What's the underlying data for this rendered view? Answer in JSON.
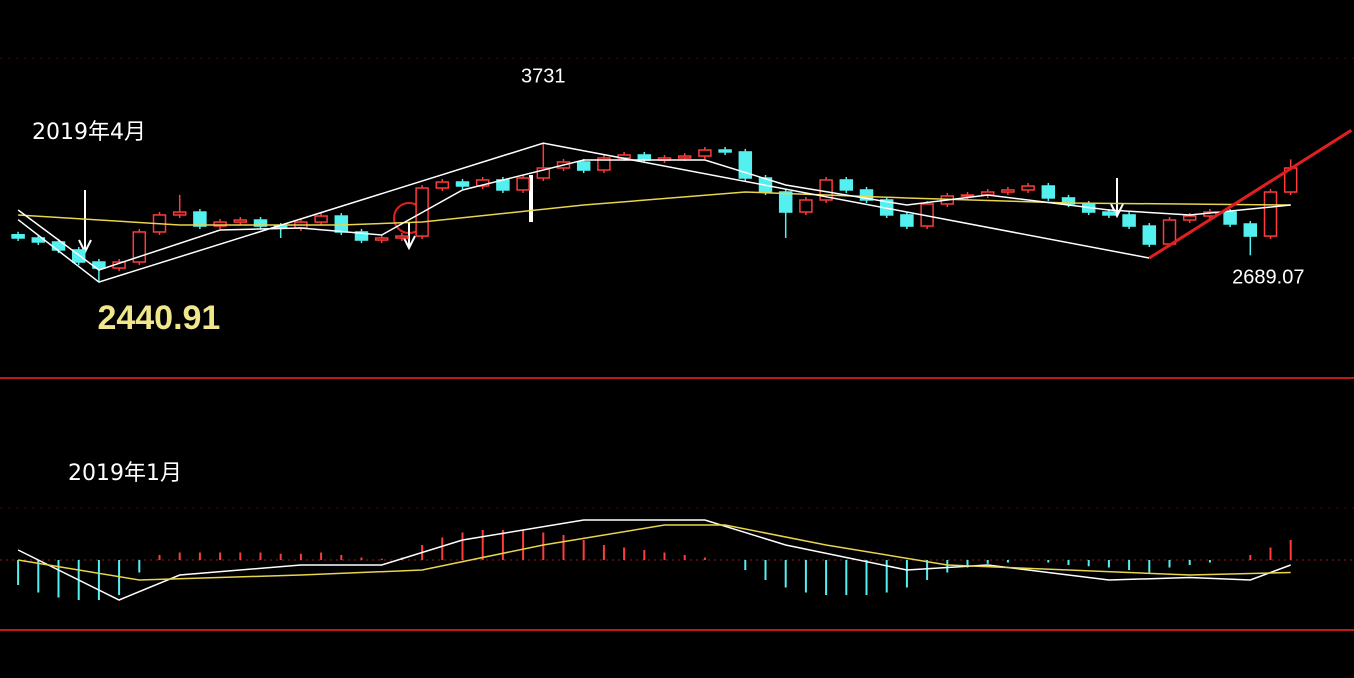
{
  "chart_data": [
    {
      "type": "candlestick",
      "open": [
        2880,
        2850,
        2813,
        2739,
        2627,
        2571,
        2627,
        2906,
        3064,
        3091,
        2961,
        2998,
        3017,
        2961,
        2943,
        2998,
        3054,
        2906,
        2831,
        2850,
        2868,
        3314,
        3370,
        3333,
        3389,
        3296,
        3407,
        3500,
        3556,
        3481,
        3593,
        3621,
        3574,
        3593,
        3611,
        3667,
        3649,
        3407,
        3277,
        3091,
        3203,
        3389,
        3296,
        3203,
        3064,
        2961,
        3166,
        3240,
        3249,
        3277,
        3296,
        3333,
        3222,
        3166,
        3091,
        3064,
        2961,
        2794,
        3017,
        3054,
        3091,
        2980,
        2868,
        3277
      ],
      "high": [
        2908,
        2878,
        2841,
        2767,
        2655,
        2655,
        2934,
        3092,
        3250,
        3119,
        3026,
        3045,
        3045,
        2989,
        3026,
        3082,
        3082,
        2934,
        2878,
        2896,
        3342,
        3398,
        3398,
        3417,
        3417,
        3435,
        3731,
        3584,
        3584,
        3621,
        3649,
        3649,
        3621,
        3639,
        3695,
        3695,
        3677,
        3435,
        3305,
        3231,
        3417,
        3417,
        3324,
        3231,
        3092,
        3194,
        3268,
        3277,
        3305,
        3324,
        3361,
        3361,
        3250,
        3194,
        3119,
        3092,
        2989,
        3045,
        3082,
        3119,
        3119,
        3008,
        3305,
        3580
      ],
      "low": [
        2822,
        2785,
        2711,
        2599,
        2440.91,
        2543,
        2599,
        2878,
        3036,
        2933,
        2933,
        2970,
        2933,
        2850,
        2915,
        2970,
        2878,
        2803,
        2803,
        2822,
        2840,
        3286,
        3305,
        3305,
        3268,
        3268,
        3379,
        3472,
        3453,
        3453,
        3565,
        3546,
        3546,
        3565,
        3583,
        3621,
        3379,
        3249,
        2850,
        3063,
        3175,
        3268,
        3175,
        3036,
        2933,
        2933,
        3138,
        3212,
        3221,
        3249,
        3268,
        3194,
        3138,
        3063,
        3036,
        2933,
        2766,
        2766,
        2989,
        3026,
        2952,
        2689.07,
        2840,
        3249
      ],
      "close": [
        2850,
        2813,
        2739,
        2627,
        2571,
        2627,
        2906,
        3064,
        3091,
        2961,
        2998,
        3017,
        2961,
        2943,
        2998,
        3054,
        2906,
        2831,
        2850,
        2868,
        3314,
        3370,
        3333,
        3389,
        3296,
        3407,
        3500,
        3556,
        3481,
        3593,
        3621,
        3574,
        3593,
        3611,
        3667,
        3649,
        3407,
        3277,
        3091,
        3203,
        3389,
        3296,
        3203,
        3064,
        2961,
        3166,
        3240,
        3249,
        3277,
        3296,
        3333,
        3222,
        3166,
        3091,
        3064,
        2961,
        2794,
        3017,
        3054,
        3091,
        2980,
        2868,
        3277,
        3500
      ],
      "up_color": "#ff3b3b",
      "down_color": "#54f0f0",
      "ylim": [
        1550,
        5060
      ],
      "lines": [
        {
          "color": "#e8d44d",
          "x": [
            0,
            8,
            16,
            20,
            28,
            36,
            44,
            52,
            63
          ],
          "values": [
            3064,
            2971,
            2971,
            2999,
            3156,
            3277,
            3222,
            3175,
            3156
          ]
        },
        {
          "color": "#ffffff",
          "x": [
            0,
            4,
            10,
            14,
            18,
            22,
            28,
            34,
            38,
            44,
            48,
            54,
            58,
            63
          ],
          "values": [
            3110,
            2553,
            2924,
            2943,
            2878,
            3296,
            3574,
            3574,
            3342,
            3156,
            3249,
            3110,
            3064,
            3156
          ]
        },
        {
          "color": "#ffffff",
          "x": [
            0,
            4,
            26,
            56
          ],
          "values": [
            3020,
            2440.91,
            3731,
            2664
          ]
        },
        {
          "color": "#e02020",
          "x": [
            56,
            66
          ],
          "values": [
            2664,
            3850
          ]
        }
      ],
      "annotations": [
        {
          "value": 3731,
          "label": "3731",
          "index": 26
        },
        {
          "value": 2440.91,
          "label": "2440.91",
          "index": 4
        },
        {
          "value": 2689.07,
          "label": "2689.07",
          "index": 61
        }
      ],
      "date_label": "2019年4月"
    },
    {
      "type": "macd",
      "values": [
        -20,
        -26,
        -30,
        -32,
        -32,
        -28,
        -10,
        4,
        6,
        6,
        6,
        6,
        6,
        5,
        5,
        6,
        4,
        2,
        1,
        2,
        12,
        18,
        22,
        24,
        24,
        24,
        22,
        20,
        16,
        12,
        10,
        8,
        6,
        4,
        2,
        0,
        -8,
        -16,
        -22,
        -26,
        -28,
        -28,
        -28,
        -26,
        -22,
        -16,
        -10,
        -6,
        -3,
        -2,
        0,
        -2,
        -4,
        -5,
        -6,
        -8,
        -10,
        -6,
        -4,
        -2,
        0,
        4,
        10,
        16
      ],
      "up_color": "#ff3b3b",
      "down_color": "#54f0f0",
      "ylim": [
        -56,
        144
      ],
      "lines": [
        {
          "color": "#ffffff",
          "x": [
            0,
            5,
            8,
            14,
            18,
            22,
            28,
            34,
            38,
            44,
            48,
            54,
            58,
            61,
            63
          ],
          "values": [
            8,
            -32,
            -12,
            -4,
            -4,
            16,
            32,
            32,
            12,
            -8,
            -4,
            -16,
            -14,
            -16,
            -4
          ]
        },
        {
          "color": "#e8d44d",
          "x": [
            0,
            6,
            14,
            20,
            26,
            32,
            35,
            40,
            46,
            52,
            58,
            63
          ],
          "values": [
            0,
            -16,
            -12,
            -8,
            12,
            28,
            28,
            12,
            -4,
            -8,
            -12,
            -10
          ]
        }
      ],
      "date_label": "2019年1月"
    }
  ]
}
